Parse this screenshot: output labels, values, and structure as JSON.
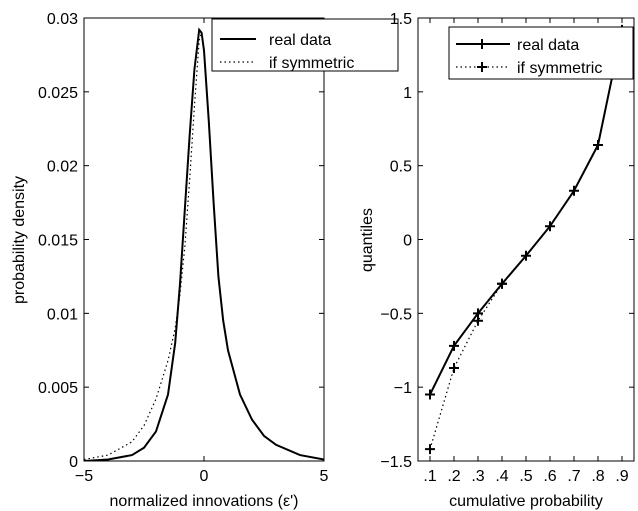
{
  "chart_data": [
    {
      "type": "line",
      "xlabel": "normalized innovations (ε')",
      "ylabel": "probability density",
      "xlim": [
        -5,
        5
      ],
      "ylim": [
        0,
        0.03
      ],
      "xticks": [
        -5,
        0,
        5
      ],
      "xtick_labels": [
        "−5",
        "0",
        "5"
      ],
      "yticks": [
        0,
        0.005,
        0.01,
        0.015,
        0.02,
        0.025,
        0.03
      ],
      "ytick_labels": [
        "0",
        "0.005",
        "0.01",
        "0.015",
        "0.02",
        "0.025",
        "0.03"
      ],
      "grid": false,
      "legend_position": "top-right",
      "series": [
        {
          "name": "real data",
          "style": "solid",
          "x": [
            -5,
            -4,
            -3,
            -2.5,
            -2,
            -1.5,
            -1.2,
            -1,
            -0.8,
            -0.6,
            -0.4,
            -0.2,
            -0.1,
            0,
            0.2,
            0.4,
            0.6,
            0.8,
            1,
            1.5,
            2,
            2.5,
            3,
            4,
            5
          ],
          "y": [
            0,
            0.0001,
            0.0004,
            0.0009,
            0.002,
            0.0045,
            0.008,
            0.012,
            0.017,
            0.022,
            0.0265,
            0.0292,
            0.029,
            0.0278,
            0.023,
            0.0175,
            0.0125,
            0.0095,
            0.0075,
            0.0045,
            0.0028,
            0.0017,
            0.0011,
            0.0004,
            0.0001
          ]
        },
        {
          "name": "if symmetric",
          "style": "dotted",
          "x": [
            -5,
            -4,
            -3,
            -2.5,
            -2,
            -1.5,
            -1.2,
            -1,
            -0.8,
            -0.6,
            -0.4,
            -0.2,
            -0.1,
            0,
            0.2,
            0.4,
            0.6,
            0.8,
            1,
            1.5,
            2,
            2.5,
            3,
            4,
            5
          ],
          "y": [
            0.0001,
            0.0004,
            0.0013,
            0.0024,
            0.0042,
            0.0068,
            0.009,
            0.0113,
            0.0145,
            0.019,
            0.024,
            0.0285,
            0.029,
            0.0278,
            0.023,
            0.0175,
            0.0125,
            0.0095,
            0.0075,
            0.0045,
            0.0028,
            0.0017,
            0.0011,
            0.0004,
            0.0001
          ]
        }
      ]
    },
    {
      "type": "line",
      "xlabel": "cumulative probability",
      "ylabel": "quantiles",
      "xlim": [
        0.05,
        0.95
      ],
      "ylim": [
        -1.5,
        1.5
      ],
      "xticks": [
        0.1,
        0.2,
        0.3,
        0.4,
        0.5,
        0.6,
        0.7,
        0.8,
        0.9
      ],
      "xtick_labels": [
        ".1",
        ".2",
        ".3",
        ".4",
        ".5",
        ".6",
        ".7",
        ".8",
        ".9"
      ],
      "yticks": [
        -1.5,
        -1,
        -0.5,
        0,
        0.5,
        1,
        1.5
      ],
      "ytick_labels": [
        "−1.5",
        "−1",
        "−0.5",
        "0",
        "0.5",
        "1",
        "1.5"
      ],
      "grid": false,
      "legend_position": "top-right",
      "series": [
        {
          "name": "real data",
          "style": "solid",
          "marker": "+",
          "x": [
            0.1,
            0.2,
            0.3,
            0.4,
            0.5,
            0.6,
            0.7,
            0.8,
            0.9
          ],
          "y": [
            -1.05,
            -0.72,
            -0.5,
            -0.3,
            -0.11,
            0.09,
            0.33,
            0.64,
            1.42
          ]
        },
        {
          "name": "if symmetric",
          "style": "dotted",
          "marker": "+",
          "x": [
            0.1,
            0.2,
            0.3,
            0.4
          ],
          "y": [
            -1.42,
            -0.87,
            -0.55,
            -0.3
          ]
        }
      ]
    }
  ]
}
